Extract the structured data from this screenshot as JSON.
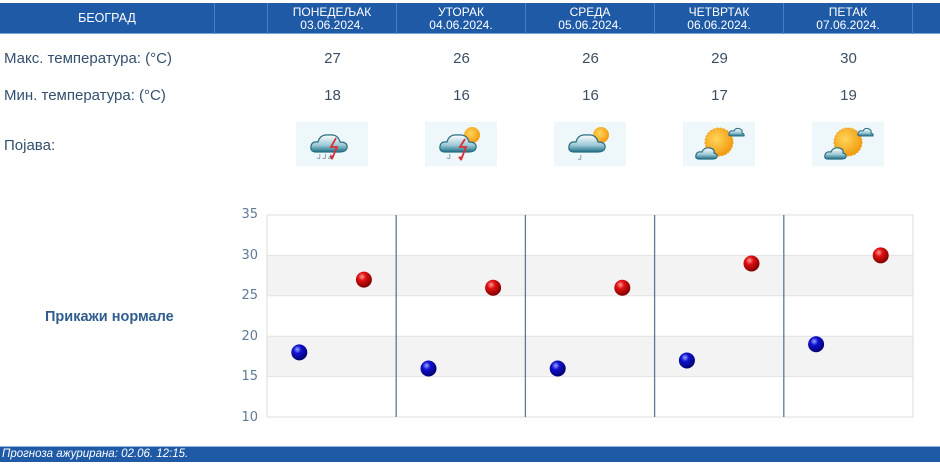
{
  "header": {
    "city": "БЕОГРАД",
    "days": [
      {
        "name": "ПОНЕДЕЉАК",
        "date": "03.06.2024."
      },
      {
        "name": "УТОРАК",
        "date": "04.06.2024."
      },
      {
        "name": "СРЕДА",
        "date": "05.06.2024."
      },
      {
        "name": "ЧЕТВРТАК",
        "date": "06.06.2024."
      },
      {
        "name": "ПЕТАК",
        "date": "07.06.2024."
      }
    ]
  },
  "rows": {
    "max_label": "Макс. температура: (°C)",
    "min_label": "Мин. температура: (°C)",
    "phenomenon_label": "Појава:",
    "max": [
      "27",
      "26",
      "26",
      "29",
      "30"
    ],
    "min": [
      "18",
      "16",
      "16",
      "17",
      "19"
    ],
    "icons": [
      "thunderstorm-rain-cloud-icon",
      "partly-sunny-thunderstorm-icon",
      "partly-sunny-light-rain-icon",
      "sun-with-clouds-icon",
      "sun-with-clouds-icon"
    ]
  },
  "normals_link": "Прикажи нормале",
  "footer": {
    "updated": "Прогноза ажурирана:  02.06. 12:15."
  },
  "colors": {
    "header_bg": "#1f5aa6",
    "max_marker": "#cc0000",
    "min_marker": "#0000bb",
    "axis_text": "#5e7a95",
    "day_divider": "#5b7a96"
  },
  "chart_data": {
    "type": "scatter",
    "title": "",
    "xlabel": "",
    "ylabel": "",
    "categories": [
      "03.06.2024.",
      "04.06.2024.",
      "05.06.2024.",
      "06.06.2024.",
      "07.06.2024."
    ],
    "series": [
      {
        "name": "Мин. температура",
        "color": "#0000bb",
        "values": [
          18,
          16,
          16,
          17,
          19
        ]
      },
      {
        "name": "Макс. температура",
        "color": "#cc0000",
        "values": [
          27,
          26,
          26,
          29,
          30
        ]
      }
    ],
    "yticks": [
      "35",
      "30",
      "25",
      "20",
      "15",
      "10"
    ],
    "ylim": [
      10,
      35
    ],
    "grid": true,
    "banded_rows": true,
    "legend": "none"
  }
}
